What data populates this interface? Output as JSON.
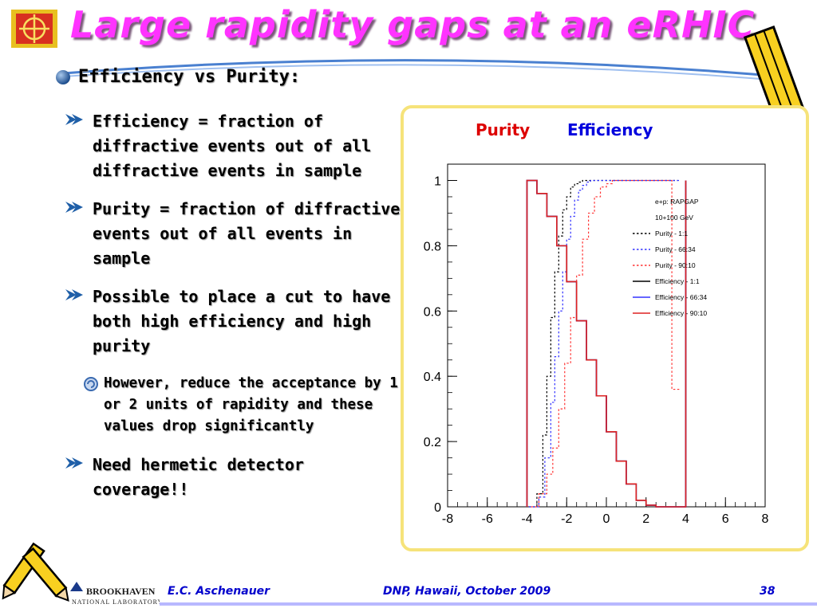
{
  "slide": {
    "title": "Large rapidity gaps at an eRHIC",
    "bullet": "Efficiency vs Purity:",
    "sub_bullets": [
      "Efficiency = fraction of diffractive events out of all diffractive events in sample",
      "Purity = fraction of diffractive events out of all events in sample",
      "Possible to place a cut to have both high efficiency and high purity"
    ],
    "sub_sub_bullet": "However, reduce the acceptance by 1 or 2 units of rapidity and these values drop significantly",
    "last_bullet": "Need hermetic detector coverage!!"
  },
  "footer": {
    "lab_name": "BROOKHAVEN",
    "lab_sub": "NATIONAL LABORATORY",
    "author": "E.C. Aschenauer",
    "event": "DNP, Hawaii, October 2009",
    "page": "38"
  },
  "colors": {
    "title": "#ff33ff",
    "purity_label": "#dd0000",
    "efficiency_label": "#0000dd",
    "footer_text": "#0000cc"
  },
  "chart_data": {
    "type": "line",
    "header_labels": {
      "purity": "Purity",
      "efficiency": "Efficiency"
    },
    "xlim": [
      -8,
      8
    ],
    "ylim": [
      0,
      1.05
    ],
    "xticks": [
      -8,
      -6,
      -4,
      -2,
      0,
      2,
      4,
      6,
      8
    ],
    "yticks": [
      0,
      0.2,
      0.4,
      0.6,
      0.8,
      1
    ],
    "ytick_labels": [
      "0",
      "0.2",
      "0.4",
      "0.6",
      "0.8",
      "1"
    ],
    "grid": false,
    "legend_placement": "right",
    "legend_header": [
      "e+p: RAPGAP",
      "10+100 GeV"
    ],
    "series": [
      {
        "name": "Purity - 1:1",
        "color": "#000000",
        "style": "dotted",
        "x": [
          -3.9,
          -3.5,
          -3.2,
          -3.0,
          -2.8,
          -2.6,
          -2.4,
          -2.2,
          -2.0,
          -1.8,
          -1.6,
          -1.4,
          -1.2,
          -1.0,
          0.0,
          3.0,
          3.2,
          3.4,
          3.6
        ],
        "y": [
          0.0,
          0.04,
          0.22,
          0.4,
          0.58,
          0.72,
          0.83,
          0.91,
          0.95,
          0.98,
          0.99,
          0.995,
          1.0,
          1.0,
          1.0,
          1.0,
          1.0,
          1.0,
          1.0
        ]
      },
      {
        "name": "Purity - 66:34",
        "color": "#3333ff",
        "style": "dotted",
        "x": [
          -3.9,
          -3.4,
          -3.1,
          -2.8,
          -2.6,
          -2.4,
          -2.2,
          -2.0,
          -1.8,
          -1.6,
          -1.4,
          -1.2,
          -1.0,
          -0.8,
          0.0,
          3.0,
          3.3,
          3.5,
          3.7
        ],
        "y": [
          0.0,
          0.03,
          0.15,
          0.32,
          0.46,
          0.6,
          0.72,
          0.82,
          0.89,
          0.94,
          0.97,
          0.985,
          0.995,
          1.0,
          1.0,
          1.0,
          1.0,
          1.0,
          1.0
        ]
      },
      {
        "name": "Purity - 90:10",
        "color": "#ff3333",
        "style": "dotted",
        "x": [
          -3.8,
          -3.4,
          -3.0,
          -2.7,
          -2.4,
          -2.1,
          -1.8,
          -1.5,
          -1.2,
          -0.9,
          -0.6,
          -0.3,
          0.0,
          0.3,
          1.0,
          3.0,
          3.3,
          3.5,
          3.7
        ],
        "y": [
          0.0,
          0.04,
          0.1,
          0.18,
          0.3,
          0.44,
          0.58,
          0.71,
          0.82,
          0.9,
          0.95,
          0.98,
          0.99,
          1.0,
          1.0,
          1.0,
          0.36,
          0.36,
          0.36
        ]
      },
      {
        "name": "Efficiency - 1:1",
        "color": "#000000",
        "style": "solid",
        "x": [
          -4.0,
          -3.5,
          -3.0,
          -2.5,
          -2.0,
          -1.5,
          -1.0,
          -0.5,
          0.0,
          0.5,
          1.0,
          1.5,
          2.0,
          2.5,
          3.0
        ],
        "y": [
          1.0,
          0.96,
          0.89,
          0.8,
          0.69,
          0.57,
          0.45,
          0.34,
          0.23,
          0.14,
          0.07,
          0.02,
          0.005,
          0.0,
          0.0
        ]
      },
      {
        "name": "Efficiency - 66:34",
        "color": "#3333ff",
        "style": "solid",
        "x": [
          -4.0,
          -3.5,
          -3.0,
          -2.5,
          -2.0,
          -1.5,
          -1.0,
          -0.5,
          0.0,
          0.5,
          1.0,
          1.5,
          2.0,
          2.5,
          3.0
        ],
        "y": [
          1.0,
          0.96,
          0.89,
          0.8,
          0.69,
          0.57,
          0.45,
          0.34,
          0.23,
          0.14,
          0.07,
          0.02,
          0.005,
          0.0,
          0.0
        ]
      },
      {
        "name": "Efficiency - 90:10",
        "color": "#dd2222",
        "style": "solid",
        "x": [
          -4.0,
          -3.5,
          -3.0,
          -2.5,
          -2.0,
          -1.5,
          -1.0,
          -0.5,
          0.0,
          0.5,
          1.0,
          1.5,
          2.0,
          2.5,
          3.0
        ],
        "y": [
          1.0,
          0.96,
          0.89,
          0.8,
          0.69,
          0.57,
          0.45,
          0.34,
          0.23,
          0.14,
          0.07,
          0.02,
          0.005,
          0.0,
          0.0
        ]
      }
    ]
  }
}
